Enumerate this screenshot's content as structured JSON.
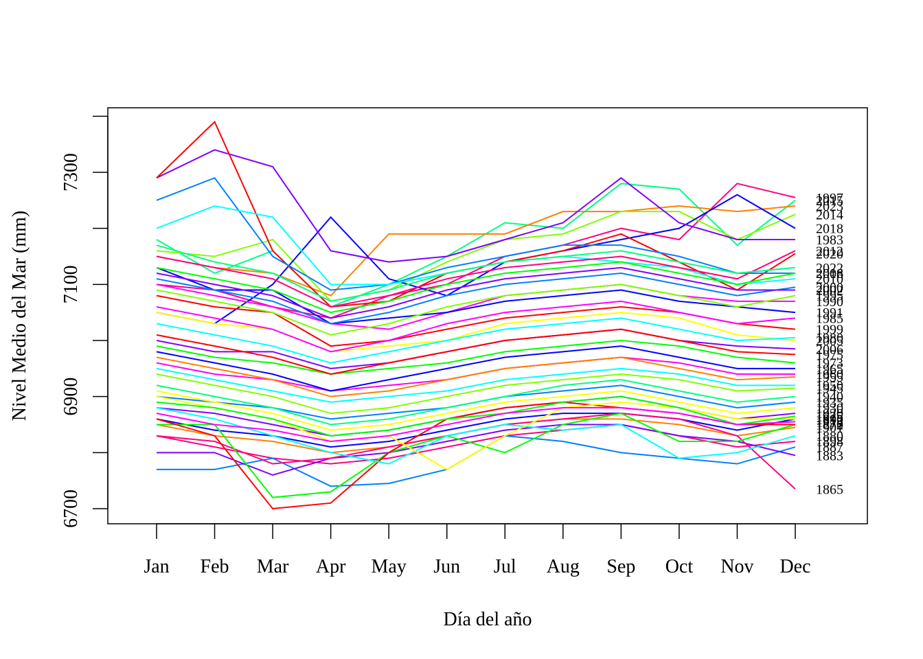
{
  "chart_data": {
    "type": "line",
    "title": "",
    "xlabel": "Día del año",
    "ylabel": "Nivel Medio del Mar (mm)",
    "categories": [
      "Jan",
      "Feb",
      "Mar",
      "Apr",
      "May",
      "Jun",
      "Jul",
      "Aug",
      "Sep",
      "Oct",
      "Nov",
      "Dec"
    ],
    "yticks": [
      6700,
      6900,
      7100,
      7300
    ],
    "ylim": [
      6680,
      7400
    ],
    "grid": false,
    "legend": "direct labels at right end of lines",
    "series": [
      {
        "name": "2015",
        "color": "#00ff80",
        "values": [
          7180,
          7120,
          7160,
          7060,
          7100,
          7150,
          7210,
          7200,
          7280,
          7270,
          7170,
          7250
        ]
      },
      {
        "name": "1997",
        "color": "#ff0080",
        "values": [
          7100,
          7090,
          7060,
          7040,
          7080,
          7100,
          7150,
          7170,
          7200,
          7180,
          7280,
          7255
        ]
      },
      {
        "name": "2023",
        "color": "#ff8000",
        "values": [
          7150,
          7130,
          7120,
          7080,
          7190,
          7190,
          7190,
          7230,
          7230,
          7240,
          7230,
          7240
        ]
      },
      {
        "name": "2014",
        "color": "#80ff00",
        "values": [
          7160,
          7150,
          7180,
          7070,
          7090,
          7140,
          7180,
          7190,
          7230,
          7230,
          7180,
          7225
        ]
      },
      {
        "name": "2018",
        "color": "#0000ff",
        "values": [
          7050,
          7030,
          7100,
          7220,
          7110,
          7080,
          7140,
          7160,
          7180,
          7200,
          7260,
          7200
        ]
      },
      {
        "name": "1983",
        "color": "#8000ff",
        "values": [
          7290,
          7340,
          7310,
          7160,
          7140,
          7150,
          7180,
          7210,
          7290,
          7210,
          7180,
          7180
        ]
      },
      {
        "name": "2020",
        "color": "#ff0000",
        "values": [
          7290,
          7390,
          7160,
          7060,
          7070,
          7120,
          7140,
          7160,
          7190,
          7140,
          7090,
          7155
        ]
      },
      {
        "name": "2016",
        "color": "#0080ff",
        "values": [
          7250,
          7290,
          7150,
          7090,
          7100,
          7130,
          7150,
          7170,
          7170,
          7150,
          7120,
          7120
        ]
      },
      {
        "name": "2010",
        "color": "#00ffff",
        "values": [
          7200,
          7240,
          7220,
          7100,
          7100,
          7120,
          7140,
          7150,
          7140,
          7130,
          7100,
          7110
        ]
      },
      {
        "name": "1990",
        "color": "#ff00ff",
        "values": [
          7100,
          7080,
          7060,
          7030,
          7020,
          7050,
          7080,
          7090,
          7100,
          7080,
          7070,
          7070
        ]
      },
      {
        "name": "1991",
        "color": "#0000ff",
        "values": [
          7130,
          7090,
          7090,
          7030,
          7040,
          7050,
          7070,
          7080,
          7090,
          7070,
          7060,
          7050
        ]
      },
      {
        "name": "1999",
        "color": "#ff0000",
        "values": [
          7080,
          7060,
          7050,
          6990,
          7000,
          7020,
          7040,
          7050,
          7060,
          7050,
          7030,
          7020
        ]
      },
      {
        "name": "2005",
        "color": "#ffff00",
        "values": [
          7050,
          7030,
          7020,
          6980,
          6990,
          7000,
          7030,
          7040,
          7050,
          7040,
          7010,
          7000
        ]
      },
      {
        "name": "2006",
        "color": "#8000ff",
        "values": [
          7000,
          6980,
          6980,
          6950,
          6960,
          6980,
          7000,
          7010,
          7020,
          7000,
          6990,
          6985
        ]
      },
      {
        "name": "1973",
        "color": "#00ff00",
        "values": [
          6990,
          6970,
          6960,
          6940,
          6950,
          6960,
          6980,
          6990,
          7000,
          6990,
          6970,
          6960
        ]
      },
      {
        "name": "1960",
        "color": "#ff00ff",
        "values": [
          6960,
          6940,
          6930,
          6910,
          6920,
          6930,
          6950,
          6960,
          6970,
          6960,
          6940,
          6940
        ]
      },
      {
        "name": "1950",
        "color": "#00ffff",
        "values": [
          6950,
          6930,
          6910,
          6890,
          6900,
          6910,
          6930,
          6940,
          6950,
          6940,
          6920,
          6920
        ]
      },
      {
        "name": "1935",
        "color": "#0080ff",
        "values": [
          6900,
          6890,
          6880,
          6860,
          6870,
          6880,
          6900,
          6910,
          6920,
          6900,
          6880,
          6890
        ]
      },
      {
        "name": "1920",
        "color": "#8000ff",
        "values": [
          6880,
          6870,
          6850,
          6830,
          6840,
          6860,
          6880,
          6890,
          6900,
          6880,
          6860,
          6870
        ]
      },
      {
        "name": "1910",
        "color": "#0000ff",
        "values": [
          6860,
          6840,
          6830,
          6810,
          6820,
          6840,
          6860,
          6870,
          6870,
          6860,
          6840,
          6860
        ]
      },
      {
        "name": "1901",
        "color": "#ff8000",
        "values": [
          6850,
          6830,
          6820,
          6800,
          6810,
          6830,
          6850,
          6860,
          6860,
          6850,
          6830,
          6845
        ]
      },
      {
        "name": "1898",
        "color": "#ff0080",
        "values": [
          6830,
          6810,
          6790,
          6780,
          6790,
          6810,
          6830,
          6840,
          6850,
          6830,
          6810,
          6820
        ]
      },
      {
        "name": "1887",
        "color": "#0080ff",
        "values": [
          6770,
          6770,
          6790,
          6740,
          6745,
          6770,
          6830,
          6820,
          6800,
          6790,
          6780,
          6810
        ]
      },
      {
        "name": "1883",
        "color": "#8000ff",
        "values": [
          6800,
          6800,
          6760,
          6790,
          6800,
          6820,
          6840,
          6850,
          6850,
          6830,
          6820,
          6795
        ]
      },
      {
        "name": "1865",
        "color": "#ff0080",
        "values": [
          6830,
          6820,
          6780,
          6790,
          6810,
          6830,
          6850,
          6860,
          6870,
          6860,
          6830,
          6735
        ]
      },
      {
        "name": "1870",
        "color": "#00ff00",
        "values": [
          6850,
          6850,
          6720,
          6730,
          6800,
          6830,
          6800,
          6850,
          6870,
          6820,
          6820,
          6850
        ]
      },
      {
        "name": "1872",
        "color": "#ff0000",
        "values": [
          6860,
          6830,
          6700,
          6710,
          6800,
          6860,
          6880,
          6890,
          6880,
          6870,
          6850,
          6850
        ]
      },
      {
        "name": "1880",
        "color": "#00ffff",
        "values": [
          6880,
          6860,
          6830,
          6800,
          6780,
          6830,
          6850,
          6840,
          6850,
          6790,
          6800,
          6830
        ]
      },
      {
        "name": "1892",
        "color": "#ffff00",
        "values": [
          6900,
          6880,
          6860,
          6820,
          6830,
          6770,
          6830,
          6880,
          6890,
          6880,
          6860,
          6860
        ]
      },
      {
        "name": "1940",
        "color": "#00ff80",
        "values": [
          6920,
          6900,
          6880,
          6850,
          6860,
          6880,
          6900,
          6920,
          6930,
          6910,
          6890,
          6900
        ]
      },
      {
        "name": "1945",
        "color": "#80ff00",
        "values": [
          6940,
          6920,
          6900,
          6870,
          6880,
          6900,
          6920,
          6930,
          6940,
          6930,
          6910,
          6915
        ]
      },
      {
        "name": "1955",
        "color": "#ff8000",
        "values": [
          6970,
          6950,
          6930,
          6900,
          6910,
          6930,
          6950,
          6960,
          6970,
          6950,
          6930,
          6935
        ]
      },
      {
        "name": "1965",
        "color": "#0000ff",
        "values": [
          6980,
          6960,
          6940,
          6910,
          6930,
          6950,
          6970,
          6980,
          6990,
          6970,
          6950,
          6950
        ]
      },
      {
        "name": "1975",
        "color": "#ff0000",
        "values": [
          7010,
          6990,
          6970,
          6940,
          6960,
          6980,
          7000,
          7010,
          7020,
          7000,
          6980,
          6975
        ]
      },
      {
        "name": "1980",
        "color": "#00ffff",
        "values": [
          7030,
          7010,
          6990,
          6960,
          6980,
          7000,
          7020,
          7030,
          7040,
          7020,
          7000,
          7005
        ]
      },
      {
        "name": "1985",
        "color": "#ff00ff",
        "values": [
          7060,
          7040,
          7020,
          6980,
          7000,
          7030,
          7050,
          7060,
          7070,
          7050,
          7030,
          7040
        ]
      },
      {
        "name": "1995",
        "color": "#80ff00",
        "values": [
          7090,
          7070,
          7050,
          7010,
          7030,
          7060,
          7080,
          7090,
          7100,
          7080,
          7060,
          7080
        ]
      },
      {
        "name": "2000",
        "color": "#0080ff",
        "values": [
          7110,
          7090,
          7070,
          7030,
          7050,
          7080,
          7100,
          7110,
          7120,
          7100,
          7080,
          7095
        ]
      },
      {
        "name": "2002",
        "color": "#8000ff",
        "values": [
          7120,
          7100,
          7080,
          7040,
          7060,
          7090,
          7110,
          7120,
          7130,
          7110,
          7090,
          7090
        ]
      },
      {
        "name": "2008",
        "color": "#00ff00",
        "values": [
          7130,
          7110,
          7090,
          7050,
          7070,
          7100,
          7120,
          7130,
          7140,
          7120,
          7100,
          7120
        ]
      },
      {
        "name": "2012",
        "color": "#ff0080",
        "values": [
          7150,
          7130,
          7110,
          7060,
          7080,
          7110,
          7130,
          7140,
          7150,
          7130,
          7110,
          7160
        ]
      },
      {
        "name": "2022",
        "color": "#00ff80",
        "values": [
          7170,
          7140,
          7120,
          7070,
          7090,
          7120,
          7140,
          7150,
          7160,
          7140,
          7120,
          7130
        ]
      },
      {
        "name": "1930",
        "color": "#ffff00",
        "values": [
          6910,
          6890,
          6870,
          6840,
          6850,
          6870,
          6890,
          6900,
          6910,
          6890,
          6870,
          6880
        ]
      },
      {
        "name": "1925",
        "color": "#00ff00",
        "values": [
          6890,
          6880,
          6860,
          6830,
          6840,
          6860,
          6870,
          6890,
          6900,
          6880,
          6850,
          6865
        ]
      },
      {
        "name": "1915",
        "color": "#ff00ff",
        "values": [
          6870,
          6850,
          6840,
          6820,
          6830,
          6850,
          6870,
          6880,
          6880,
          6870,
          6850,
          6855
        ]
      }
    ]
  }
}
